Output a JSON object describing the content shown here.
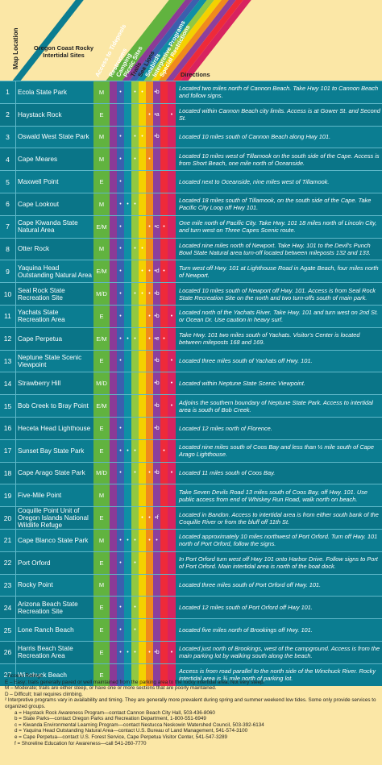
{
  "header": {
    "map_location": "Map Location",
    "site_title": "Oregon Coast Rocky Intertidal Sites",
    "directions": "Directions",
    "columns": [
      "Access to Tidepools",
      "Restrooms",
      "Camping",
      "Picnic Sites",
      "Trails",
      "Sea Lions",
      "Seabirds",
      "Interpretive Programs",
      "Special Restrictions"
    ]
  },
  "colors": {
    "teal": "#0b7d91",
    "cream": "#fbe7a6",
    "green": "#61b33f",
    "purple": "#8b3a97",
    "blue": "#3b5fae",
    "yellow": "#f4d100",
    "orange": "#f08a1c",
    "red": "#ee2a39",
    "magenta": "#d8235f"
  },
  "rows": [
    {
      "n": "1",
      "site": "Ecola State Park",
      "acc": "M",
      "cols": [
        "",
        "•",
        "",
        "•",
        "•",
        "",
        "•b",
        "",
        ""
      ],
      "dir": "Located two miles north of Cannon Beach. Take Hwy 101 to Cannon Beach and follow signs."
    },
    {
      "n": "2",
      "site": "Haystack Rock",
      "acc": "E",
      "cols": [
        "",
        "",
        "",
        "",
        "",
        "•",
        "•a",
        "",
        "•"
      ],
      "dir": "Located within Cannon Beach city limits. Access is at Gower St. and Second St."
    },
    {
      "n": "3",
      "site": "Oswald West State Park",
      "acc": "M",
      "cols": [
        "",
        "•",
        "",
        "•",
        "•",
        "",
        "•b",
        "",
        ""
      ],
      "dir": "Located 10 miles south of Cannon Beach along Hwy 101."
    },
    {
      "n": "4",
      "site": "Cape Meares",
      "acc": "M",
      "cols": [
        "",
        "•",
        "",
        "•",
        "",
        "•",
        "",
        "",
        ""
      ],
      "dir": "Located 10 miles west of Tillamook on the south side of the Cape. Access is from Short Beach, one mile north of Oceanside."
    },
    {
      "n": "5",
      "site": "Maxwell Point",
      "acc": "E",
      "cols": [
        "",
        "•",
        "",
        "",
        "",
        "",
        "",
        "",
        ""
      ],
      "dir": "Located next to Oceanside, nine miles west of Tillamook."
    },
    {
      "n": "6",
      "site": "Cape Lookout",
      "acc": "M",
      "cols": [
        "",
        "•",
        "•",
        "•",
        "",
        "",
        "",
        "",
        ""
      ],
      "dir": "Located 18 miles south of Tillamook, on the south side of the Cape. Take Pacific City Loop off Hwy 101."
    },
    {
      "n": "7",
      "site": "Cape Kiwanda State Natural Area",
      "acc": "E/M",
      "cols": [
        "",
        "•",
        "",
        "",
        "",
        "•",
        "•c",
        "•",
        ""
      ],
      "dir": "One mile north of Pacific City. Take Hwy. 101 18 miles north of Lincoln City, and turn west on Three Capes Scenic route."
    },
    {
      "n": "8",
      "site": "Otter Rock",
      "acc": "M",
      "cols": [
        "",
        "•",
        "",
        "•",
        "•",
        "",
        "",
        "",
        ""
      ],
      "dir": "Located nine miles north of Newport. Take Hwy. 101 to the Devil's Punch Bowl State Natural area turn-off located between mileposts 132 and 133."
    },
    {
      "n": "9",
      "site": "Yaquina Head Outstanding Natural Area",
      "acc": "E/M",
      "cols": [
        "",
        "•",
        "",
        "",
        "•",
        "•",
        "•d",
        "•",
        ""
      ],
      "dir": "Turn west off Hwy. 101 at Lighthouse Road in Agate Beach, four miles north of Newport."
    },
    {
      "n": "10",
      "site": "Seal Rock State Recreation Site",
      "acc": "M/D",
      "cols": [
        "",
        "•",
        "",
        "•",
        "•",
        "•",
        "•b",
        "",
        ""
      ],
      "dir": "Located 10 miles south of Newport off Hwy. 101. Access is from Seal Rock State Recreation Site on the north and two turn-offs south of main park."
    },
    {
      "n": "11",
      "site": "Yachats State Recreation Area",
      "acc": "E",
      "cols": [
        "",
        "•",
        "",
        "",
        "",
        "•",
        "•b",
        "",
        "•"
      ],
      "dir": "Located north of the Yachats River. Take Hwy. 101 and turn west on 2nd St. or Ocean Dr. Use caution in heavy surf."
    },
    {
      "n": "12",
      "site": "Cape Perpetua",
      "acc": "E/M",
      "cols": [
        "",
        "•",
        "•",
        "•",
        "",
        "•",
        "•e",
        "•",
        ""
      ],
      "dir": "Take Hwy. 101 two miles south of Yachats. Visitor's Center is located between mileposts 168 and 169."
    },
    {
      "n": "13",
      "site": "Neptune State Scenic Viewpoint",
      "acc": "E",
      "cols": [
        "",
        "•",
        "",
        "",
        "",
        "",
        "•b",
        "",
        "•"
      ],
      "dir": "Located three miles south of Yachats off Hwy. 101."
    },
    {
      "n": "14",
      "site": "Strawberry Hill",
      "acc": "M/D",
      "cols": [
        "",
        "",
        "",
        "",
        "",
        "",
        "•b",
        "",
        "•"
      ],
      "dir": "Located within Neptune State Scenic Viewpoint."
    },
    {
      "n": "15",
      "site": "Bob Creek to Bray Point",
      "acc": "E/M",
      "cols": [
        "",
        "",
        "",
        "",
        "",
        "",
        "•b",
        "",
        "•"
      ],
      "dir": "Adjoins the southern boundary of Neptune State Park. Access to intertidal area is south of Bob Creek."
    },
    {
      "n": "16",
      "site": "Heceta Head Lighthouse",
      "acc": "E",
      "cols": [
        "",
        "•",
        "",
        "",
        "",
        "",
        "•b",
        "",
        ""
      ],
      "dir": "Located 12 miles north of Florence."
    },
    {
      "n": "17",
      "site": "Sunset Bay State Park",
      "acc": "E",
      "cols": [
        "",
        "•",
        "•",
        "•",
        "",
        "",
        "",
        "•",
        ""
      ],
      "dir": "Located nine miles south of Coos Bay and less than ½ mile south of Cape Arago Lighthouse."
    },
    {
      "n": "18",
      "site": "Cape Arago State Park",
      "acc": "M/D",
      "cols": [
        "",
        "•",
        "",
        "•",
        "",
        "•",
        "•b",
        "",
        "•"
      ],
      "dir": "Located 11 miles south of Coos Bay."
    },
    {
      "n": "19",
      "site": "Five-Mile Point",
      "acc": "M",
      "cols": [
        "",
        "",
        "",
        "",
        "",
        "",
        "",
        "",
        ""
      ],
      "dir": "Take Seven Devils Road 13 miles south of Coos Bay, off Hwy. 101. Use public access from end of Whiskey Run Road, walk north on beach."
    },
    {
      "n": "20",
      "site": "Coquille Point Unit of Oregon Islands National Wildlife Refuge",
      "acc": "E",
      "cols": [
        "",
        "",
        "",
        "",
        "•",
        "•",
        "•f",
        "",
        ""
      ],
      "dir": "Located in Bandon. Access to intertidal area is from either south bank of the Coquille River or from the bluff off 11th St."
    },
    {
      "n": "21",
      "site": "Cape Blanco State Park",
      "acc": "M",
      "cols": [
        "",
        "•",
        "•",
        "•",
        "",
        "•",
        "•",
        "",
        ""
      ],
      "dir": "Located approximately 10 miles northwest of Port Orford. Turn off Hwy. 101 north of Port Orford, follow the signs."
    },
    {
      "n": "22",
      "site": "Port Orford",
      "acc": "E",
      "cols": [
        "",
        "•",
        "",
        "•",
        "",
        "",
        "",
        "",
        ""
      ],
      "dir": "In Port Orford turn west off Hwy 101 onto Harbor Drive. Follow signs to Port of Port Orford. Main intertidal area is north of the boat dock."
    },
    {
      "n": "23",
      "site": "Rocky Point",
      "acc": "M",
      "cols": [
        "",
        "",
        "",
        "",
        "",
        "",
        "",
        "",
        ""
      ],
      "dir": "Located three miles south of Port Orford off Hwy. 101."
    },
    {
      "n": "24",
      "site": "Arizona Beach State Recreation Site",
      "acc": "E",
      "cols": [
        "",
        "•",
        "",
        "•",
        "",
        "",
        "",
        "",
        ""
      ],
      "dir": "Located 12 miles south of Port Orford off Hwy 101."
    },
    {
      "n": "25",
      "site": "Lone Ranch Beach",
      "acc": "E",
      "cols": [
        "",
        "•",
        "",
        "•",
        "",
        "",
        "",
        "",
        ""
      ],
      "dir": "Located five miles north of Brookings off Hwy. 101."
    },
    {
      "n": "26",
      "site": "Harris Beach State Recreation Area",
      "acc": "E",
      "cols": [
        "",
        "•",
        "•",
        "•",
        "",
        "•",
        "•b",
        "",
        "•"
      ],
      "dir": "Located just north of Brookings, west of the campground. Access is from the main parking lot by walking south along the beach."
    },
    {
      "n": "27",
      "site": "Winchuck Beach",
      "acc": "E",
      "cols": [
        "",
        "",
        "",
        "",
        "",
        "",
        "",
        "",
        ""
      ],
      "dir": "Access is from road parallel to the north side of the Winchuck River. Rocky intertidal area is ¾ mile north of parking lot."
    }
  ],
  "footnotes": {
    "f1_title": "¹ Access Ratings",
    "f1_e": "E – Easy; trails generally paved or well maintained from the parking area to the rocky intertidal area. Not very steep.",
    "f1_m": "M – Moderate; trails are either steep, or have one or more sections that are poorly maintained.",
    "f1_d": "D – Difficult; trail requires climbing.",
    "f2": "² Interpretive programs vary in availability and timing. They are generally more prevalent during spring and summer weekend low tides. Some only provide services to organized groups.",
    "fa": "a = Haystack Rock Awareness Program—contact Cannon Beach City Hall, 503-436-8060",
    "fb": "b = State Parks—contact Oregon Parks and Recreation Department, 1-800-551-6949",
    "fc": "c = Kiwanda Environmental Learning Program—contact Nestucca Neskowin Watershed Council, 503-392-6134",
    "fd": "d = Yaquina Head Outstanding Natural Area—contact U.S. Bureau of Land Management, 541-574-3100",
    "fe": "e = Cape Perpetua—contact U.S. Forest Service, Cape Perpetua Visitor Center, 541-547-3289",
    "ff": "f = Shoreline Education for Awareness—call 541-260-7770"
  }
}
